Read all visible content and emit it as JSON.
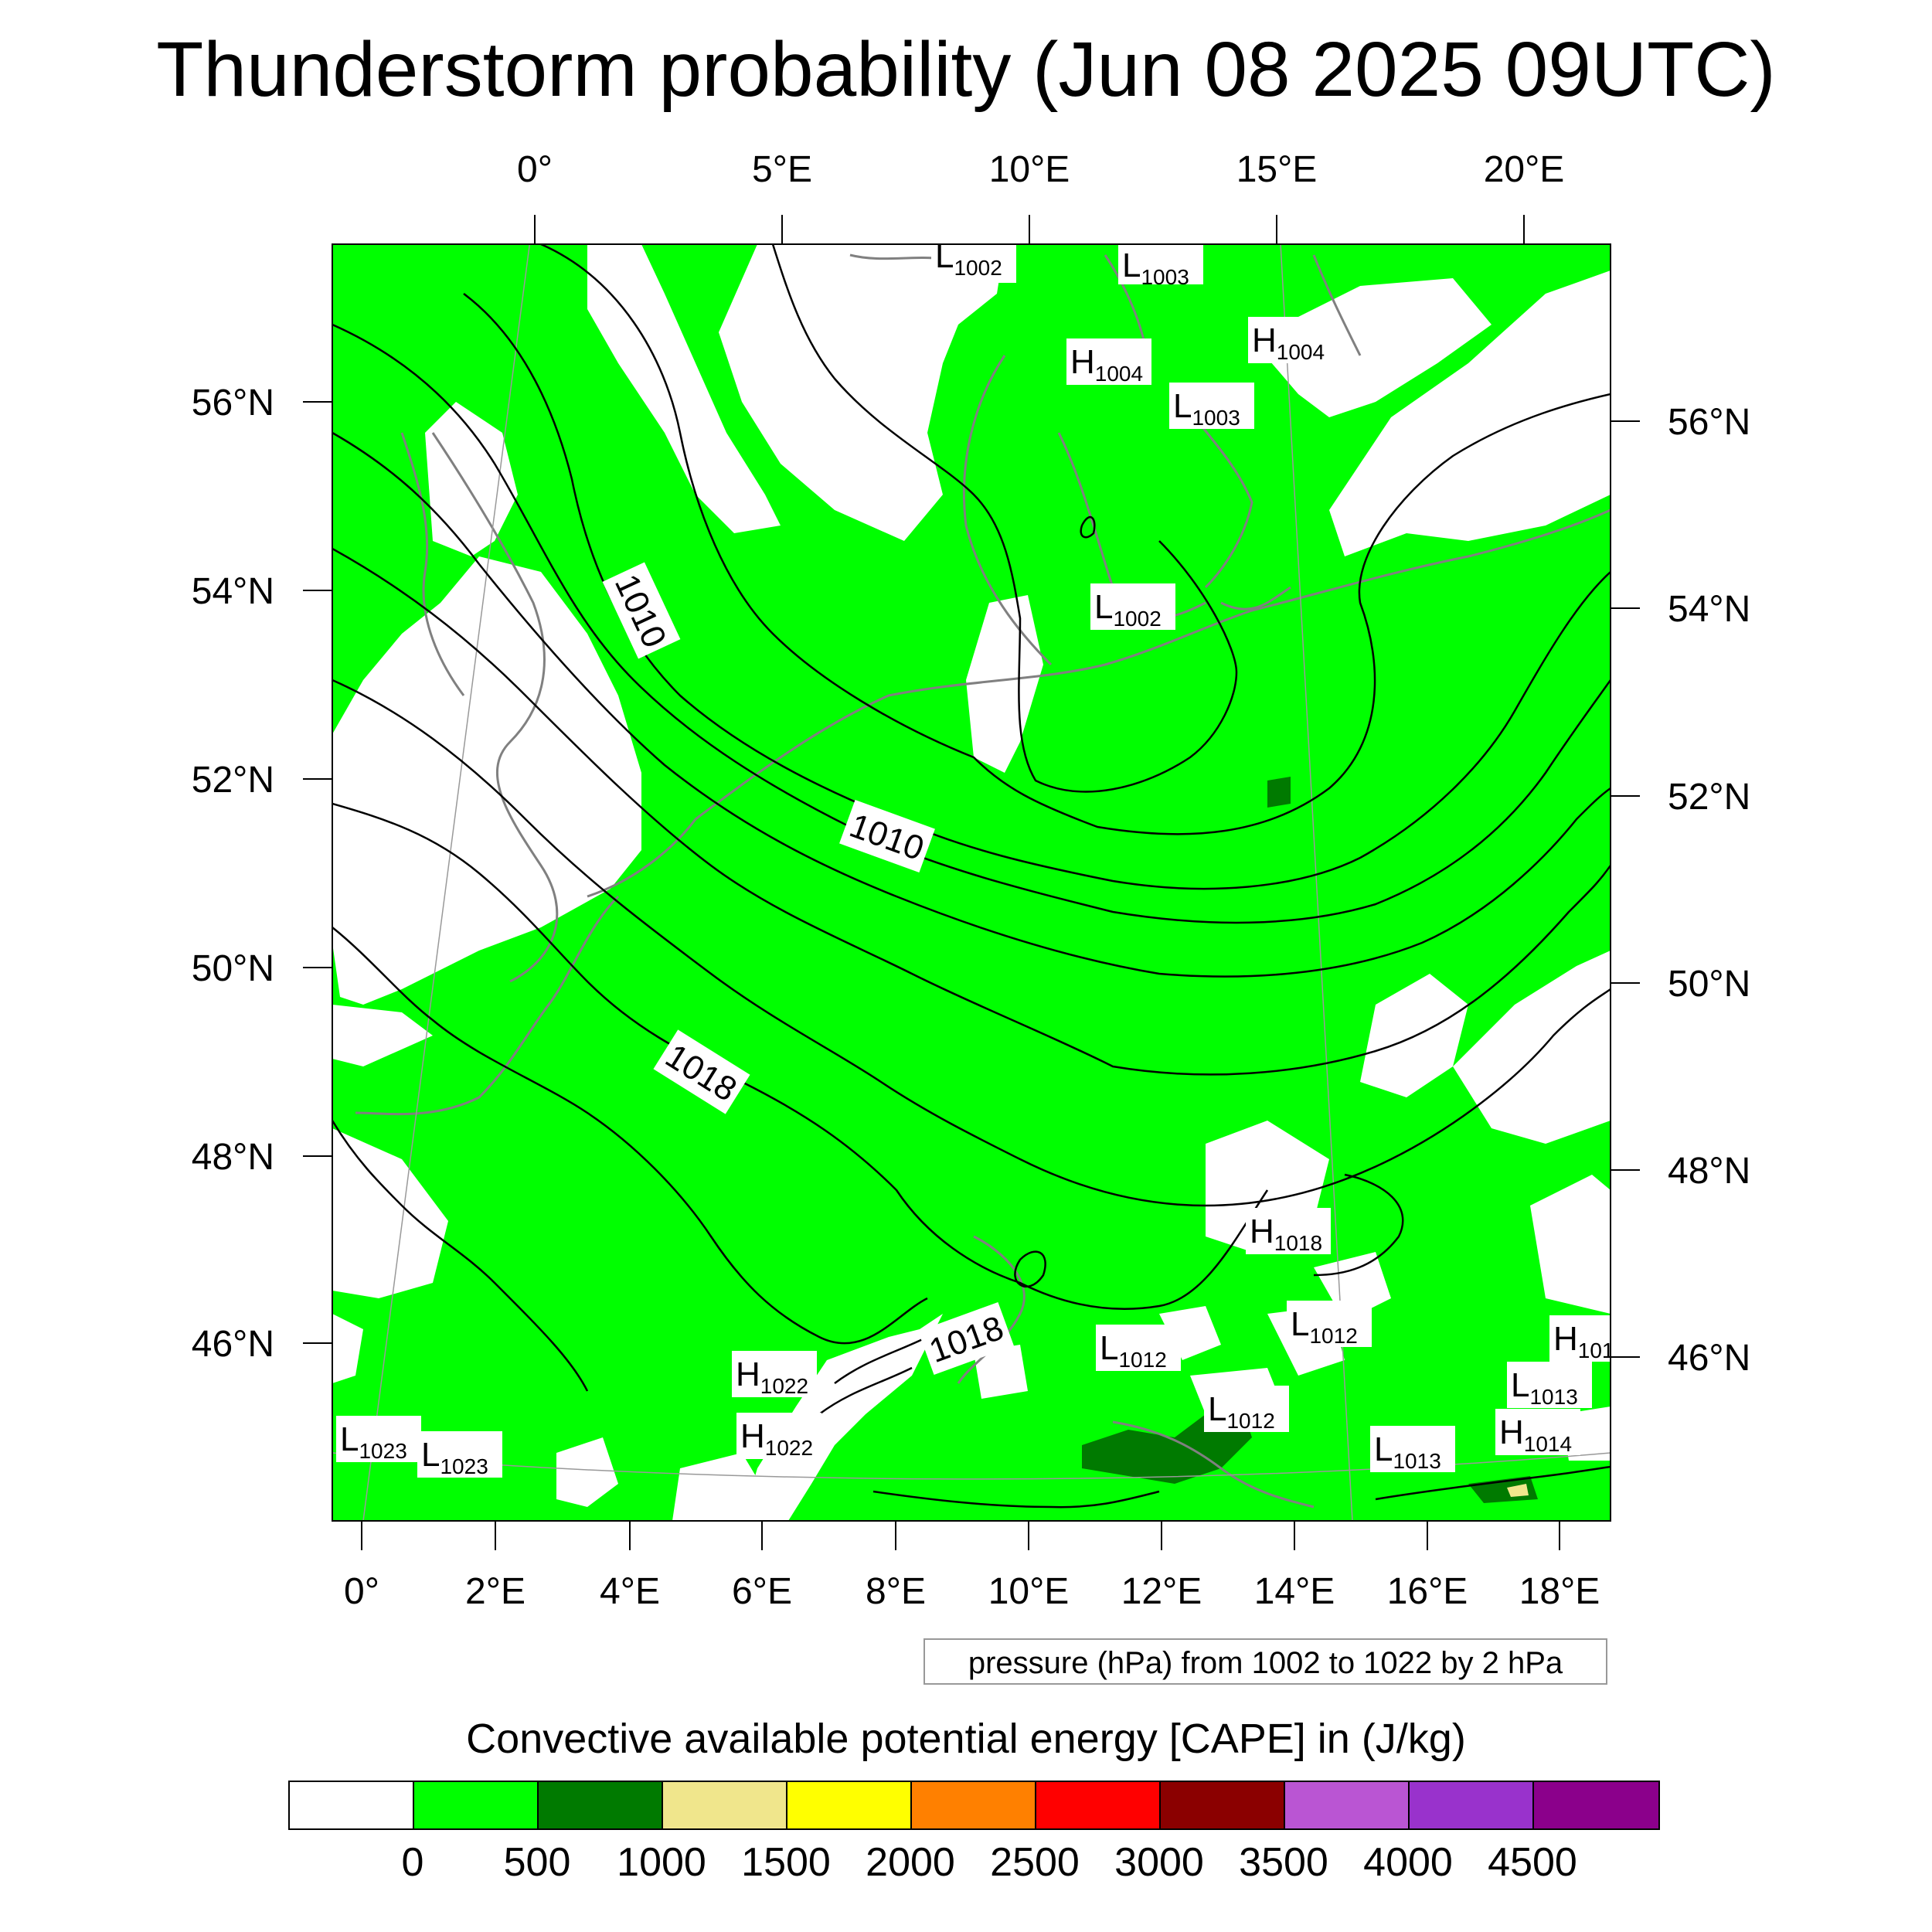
{
  "title": "Thunderstorm probability (Jun 08 2025 09UTC)",
  "top_lon_labels": [
    "0°",
    "5°E",
    "10°E",
    "15°E",
    "20°E"
  ],
  "bottom_lon_labels": [
    "0°",
    "2°E",
    "4°E",
    "6°E",
    "8°E",
    "10°E",
    "12°E",
    "14°E",
    "16°E",
    "18°E"
  ],
  "left_lat_labels": [
    "56°N",
    "54°N",
    "52°N",
    "50°N",
    "48°N",
    "46°N"
  ],
  "right_lat_labels": [
    "56°N",
    "54°N",
    "52°N",
    "50°N",
    "48°N",
    "46°N"
  ],
  "contour_labels": [
    "1010",
    "1010",
    "1018",
    "1018"
  ],
  "pressure_centers": [
    {
      "type": "L",
      "value": "1002"
    },
    {
      "type": "L",
      "value": "1003"
    },
    {
      "type": "H",
      "value": "1004"
    },
    {
      "type": "H",
      "value": "1004"
    },
    {
      "type": "L",
      "value": "1003"
    },
    {
      "type": "L",
      "value": "1002"
    },
    {
      "type": "H",
      "value": "1018"
    },
    {
      "type": "L",
      "value": "1012"
    },
    {
      "type": "L",
      "value": "1012"
    },
    {
      "type": "H",
      "value": "1022"
    },
    {
      "type": "H",
      "value": "1022"
    },
    {
      "type": "L",
      "value": "1012"
    },
    {
      "type": "L",
      "value": "1013"
    },
    {
      "type": "H",
      "value": "1014"
    },
    {
      "type": "L",
      "value": "1013"
    },
    {
      "type": "L",
      "value": "1023"
    },
    {
      "type": "L",
      "value": "1023"
    },
    {
      "type": "H",
      "value": "101"
    }
  ],
  "pressure_note": "pressure (hPa) from 1002 to 1022 by 2 hPa",
  "colorbar_title": "Convective available potential energy [CAPE] in (J/kg)",
  "colorbar_colors": [
    "#ffffff",
    "#00ff00",
    "#007a00",
    "#f0e68c",
    "#ffff00",
    "#ff8000",
    "#ff0000",
    "#8b0000",
    "#ba55d3",
    "#9932cc",
    "#8b008b"
  ],
  "colorbar_labels": [
    "0",
    "500",
    "1000",
    "1500",
    "2000",
    "2500",
    "3000",
    "3500",
    "4000",
    "4500"
  ]
}
